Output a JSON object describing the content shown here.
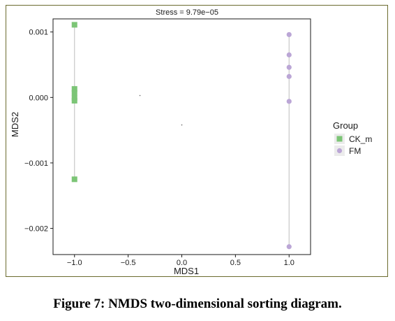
{
  "caption": "Figure 7: NMDS two-dimensional sorting diagram.",
  "chart_data": {
    "type": "scatter",
    "title": "Stress = 9.79e−05",
    "xlabel": "MDS1",
    "ylabel": "MDS2",
    "xlim": [
      -1.2,
      1.2
    ],
    "ylim": [
      -0.0024,
      0.0012
    ],
    "x_ticks": [
      -1.0,
      -0.5,
      0.0,
      0.5,
      1.0
    ],
    "x_tick_labels": [
      "−1.0",
      "−0.5",
      "0.0",
      "0.5",
      "1.0"
    ],
    "y_ticks": [
      0.001,
      0.0,
      -0.001,
      -0.002
    ],
    "y_tick_labels": [
      "0.001",
      "0.000",
      "−0.001",
      "−0.002"
    ],
    "grid": false,
    "legend": {
      "title": "Group",
      "position": "right"
    },
    "series": [
      {
        "name": "CK_m",
        "marker": "square",
        "color": "#7cc576",
        "x": [
          -1.0,
          -1.0,
          -1.0,
          -1.0,
          -1.0,
          -1.0
        ],
        "y": [
          0.00111,
          0.00013,
          7e-05,
          -1e-05,
          -5e-05,
          -0.00125
        ]
      },
      {
        "name": "FM",
        "marker": "circle",
        "color": "#bba6d6",
        "x": [
          1.0,
          1.0,
          1.0,
          1.0,
          1.0,
          1.0
        ],
        "y": [
          0.00096,
          0.00065,
          0.00046,
          0.00032,
          -6e-05,
          -0.00228
        ]
      }
    ],
    "spans": [
      {
        "x": -1.0,
        "y": [
          -0.00125,
          0.00111
        ],
        "color": "#c8c8c8"
      },
      {
        "x": 1.0,
        "y": [
          -0.00228,
          0.00096
        ],
        "color": "#c8c8c8"
      }
    ],
    "centroid_marks": [
      {
        "x": -0.39,
        "y": 3e-05
      },
      {
        "x": 0.0,
        "y": -0.00042
      }
    ]
  }
}
